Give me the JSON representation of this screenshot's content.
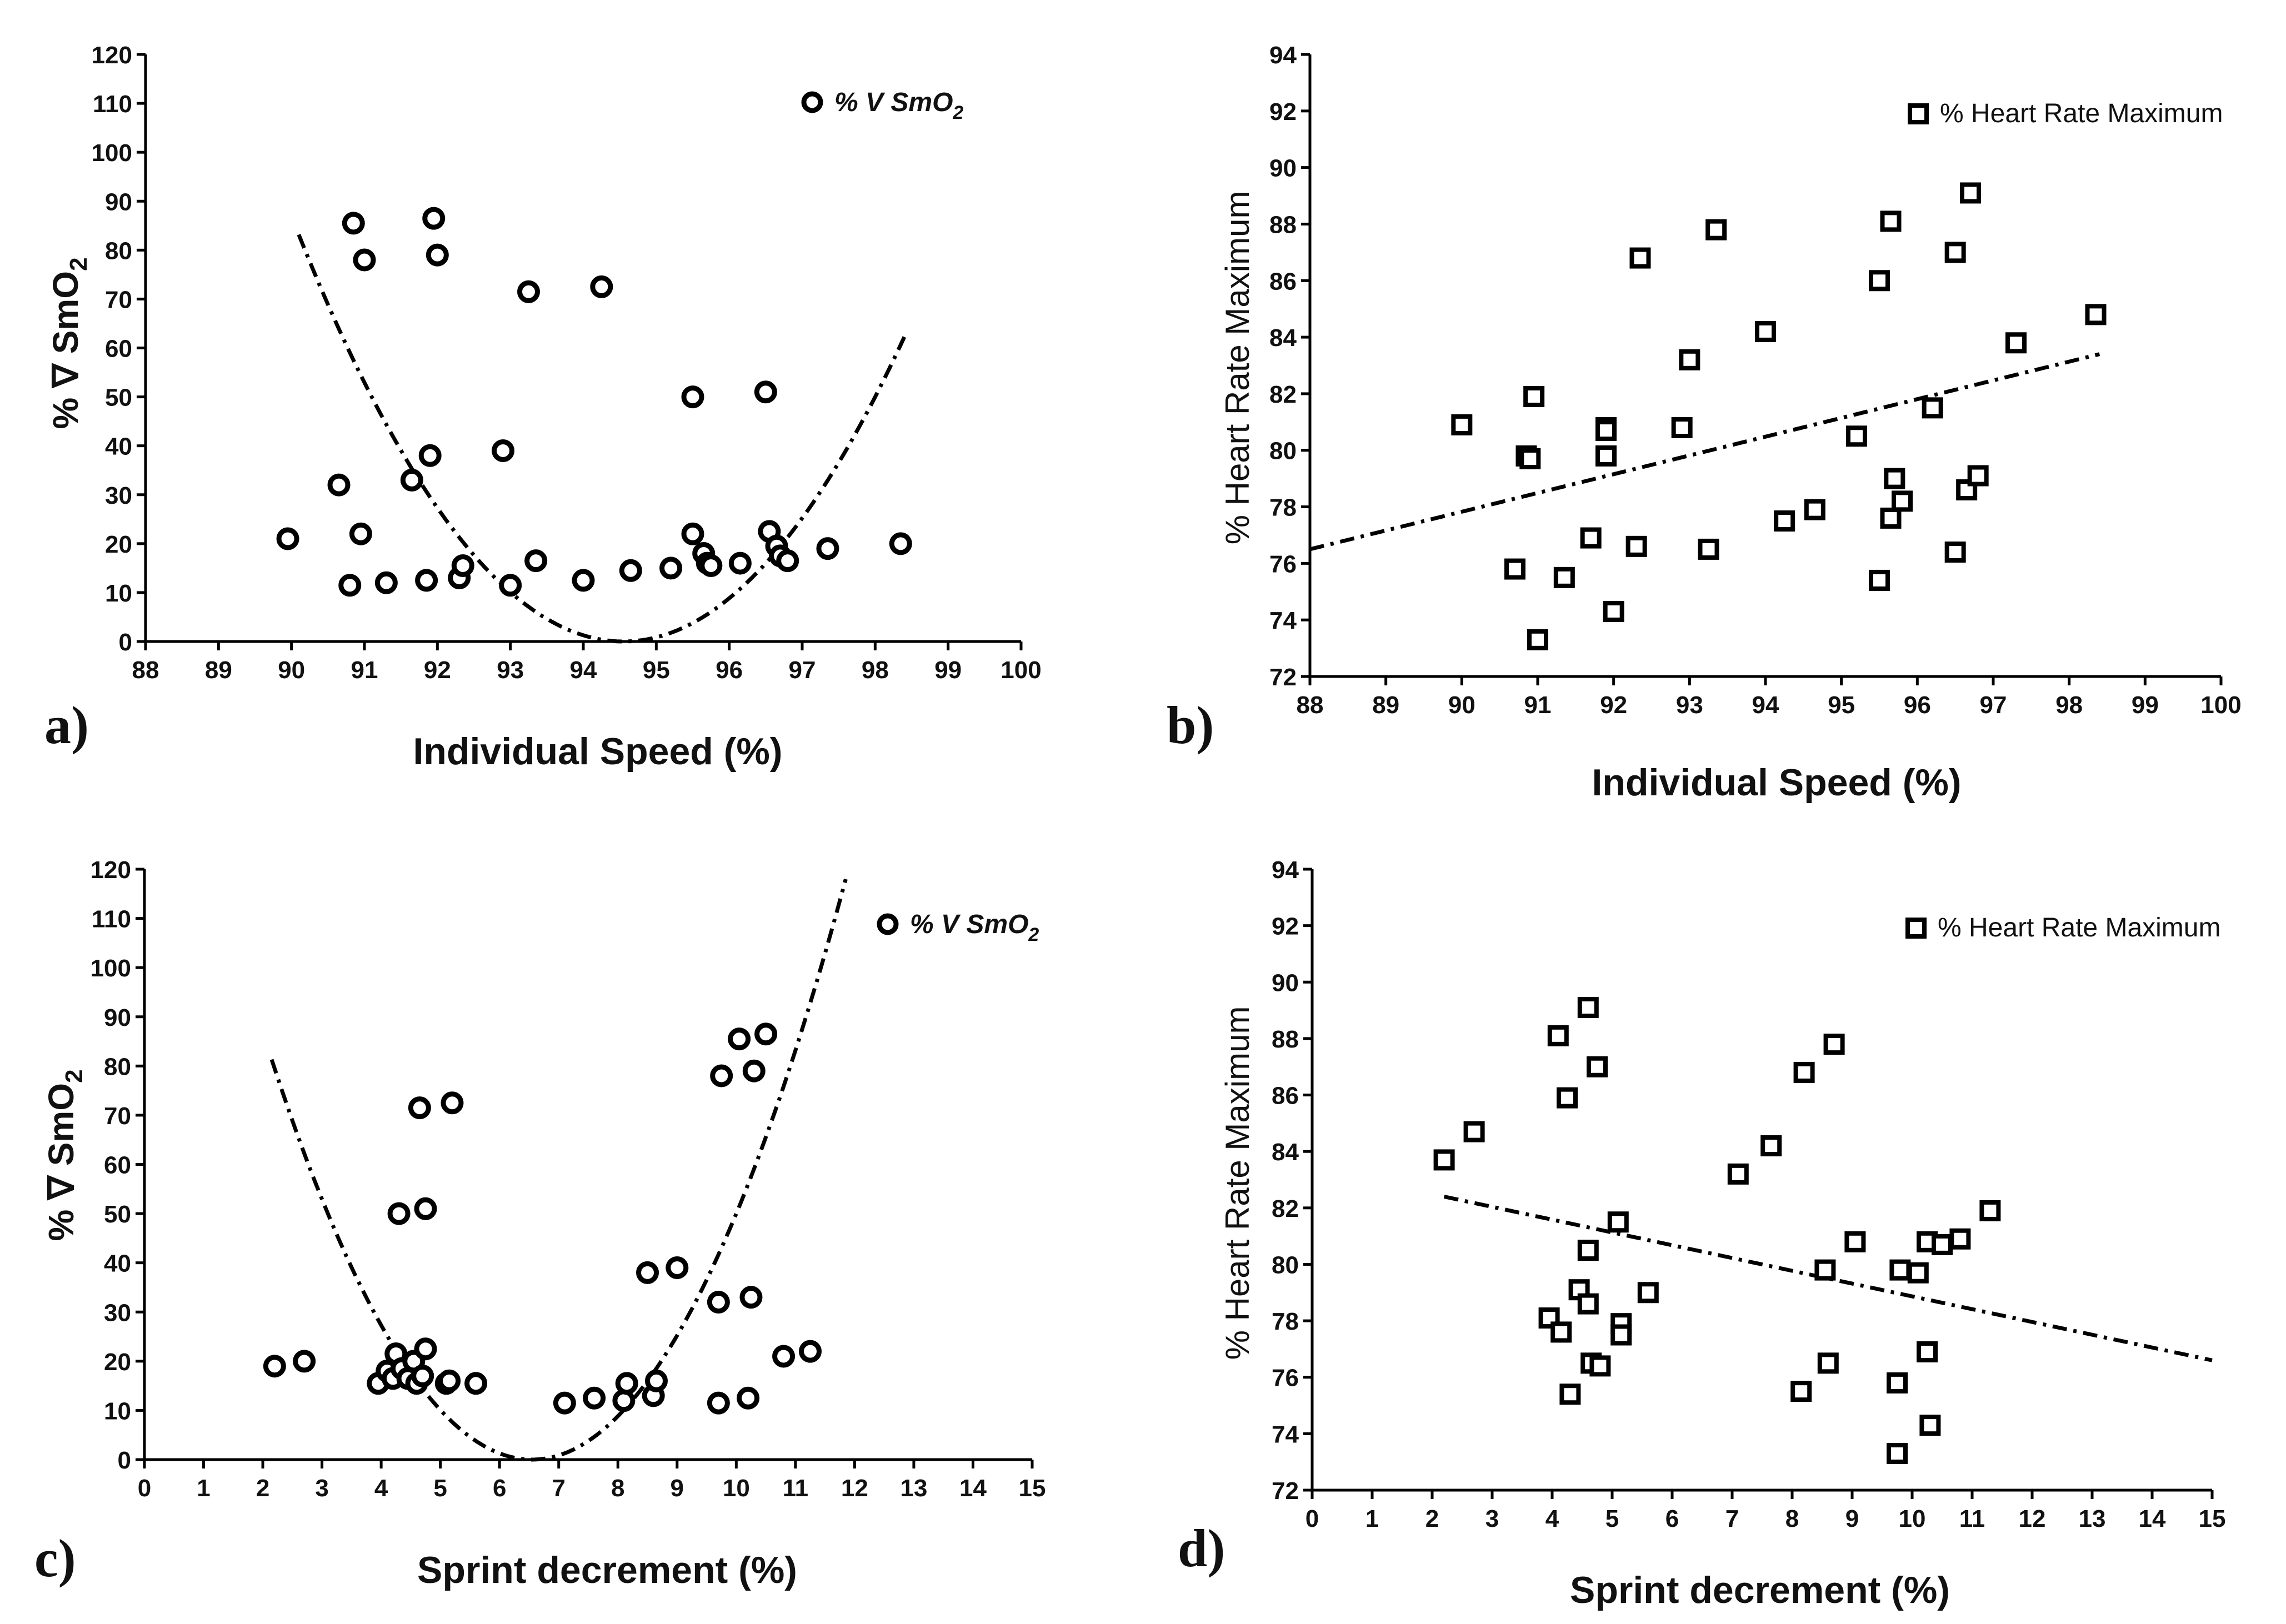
{
  "chart_data": [
    {
      "panel_label": "a)",
      "type": "scatter",
      "xlabel": "Individual Speed (%)",
      "ylabel": "% ∇ SmO",
      "ylabel_sub": "2",
      "xlim": [
        88,
        100
      ],
      "ylim": [
        0,
        120
      ],
      "xticks": [
        "88",
        "89",
        "90",
        "91",
        "92",
        "93",
        "94",
        "95",
        "96",
        "97",
        "98",
        "99",
        "100"
      ],
      "yticks": [
        "0",
        "10",
        "20",
        "30",
        "40",
        "50",
        "60",
        "70",
        "80",
        "90",
        "100",
        "110",
        "120"
      ],
      "legend": {
        "label": "% V SmO",
        "sub": "2",
        "marker": "circle",
        "position": "top-right"
      },
      "trend": {
        "type": "quadratic",
        "equation": "4.2*(x-94.55)^2",
        "x_range": [
          90.1,
          98.4
        ]
      },
      "points": [
        {
          "x": 89.95,
          "y": 21
        },
        {
          "x": 90.65,
          "y": 32
        },
        {
          "x": 90.8,
          "y": 11.5
        },
        {
          "x": 90.85,
          "y": 85.5
        },
        {
          "x": 90.95,
          "y": 22
        },
        {
          "x": 91.0,
          "y": 78
        },
        {
          "x": 91.3,
          "y": 12
        },
        {
          "x": 91.65,
          "y": 33
        },
        {
          "x": 91.85,
          "y": 12.5
        },
        {
          "x": 91.9,
          "y": 38
        },
        {
          "x": 91.95,
          "y": 86.5
        },
        {
          "x": 92.0,
          "y": 79
        },
        {
          "x": 92.3,
          "y": 13
        },
        {
          "x": 92.35,
          "y": 15.5
        },
        {
          "x": 92.9,
          "y": 39
        },
        {
          "x": 93.0,
          "y": 11.5
        },
        {
          "x": 93.25,
          "y": 71.5
        },
        {
          "x": 93.35,
          "y": 16.5
        },
        {
          "x": 94.0,
          "y": 12.5
        },
        {
          "x": 94.25,
          "y": 72.5
        },
        {
          "x": 94.65,
          "y": 14.5
        },
        {
          "x": 95.2,
          "y": 15
        },
        {
          "x": 95.5,
          "y": 22
        },
        {
          "x": 95.5,
          "y": 50
        },
        {
          "x": 95.65,
          "y": 18
        },
        {
          "x": 95.7,
          "y": 16
        },
        {
          "x": 95.75,
          "y": 15.5
        },
        {
          "x": 96.15,
          "y": 16
        },
        {
          "x": 96.5,
          "y": 51
        },
        {
          "x": 96.55,
          "y": 22.5
        },
        {
          "x": 96.65,
          "y": 19.5
        },
        {
          "x": 96.7,
          "y": 17.5
        },
        {
          "x": 96.8,
          "y": 16.5
        },
        {
          "x": 97.35,
          "y": 19
        },
        {
          "x": 98.35,
          "y": 20
        }
      ]
    },
    {
      "panel_label": "b)",
      "type": "scatter",
      "xlabel": "Individual Speed (%)",
      "ylabel": "% Heart Rate Maximum",
      "xlim": [
        88,
        100
      ],
      "ylim": [
        72,
        94
      ],
      "xticks": [
        "88",
        "89",
        "90",
        "91",
        "92",
        "93",
        "94",
        "95",
        "96",
        "97",
        "98",
        "99",
        "100"
      ],
      "yticks": [
        "72",
        "74",
        "76",
        "78",
        "80",
        "82",
        "84",
        "86",
        "88",
        "90",
        "92",
        "94"
      ],
      "legend": {
        "label": "% Heart Rate Maximum",
        "marker": "square",
        "position": "top-right"
      },
      "trend": {
        "type": "linear",
        "x0": 88,
        "y0": 76.5,
        "x1": 98.4,
        "y1": 83.4
      },
      "points": [
        {
          "x": 90.0,
          "y": 80.9
        },
        {
          "x": 90.7,
          "y": 75.8
        },
        {
          "x": 90.85,
          "y": 79.8
        },
        {
          "x": 90.9,
          "y": 79.7
        },
        {
          "x": 90.95,
          "y": 81.9
        },
        {
          "x": 91.0,
          "y": 73.3
        },
        {
          "x": 91.35,
          "y": 75.5
        },
        {
          "x": 91.7,
          "y": 76.9
        },
        {
          "x": 91.9,
          "y": 80.8
        },
        {
          "x": 91.9,
          "y": 80.7
        },
        {
          "x": 91.9,
          "y": 79.8
        },
        {
          "x": 92.0,
          "y": 74.3
        },
        {
          "x": 92.3,
          "y": 76.6
        },
        {
          "x": 92.35,
          "y": 86.8
        },
        {
          "x": 92.9,
          "y": 80.8
        },
        {
          "x": 93.0,
          "y": 83.2
        },
        {
          "x": 93.25,
          "y": 76.5
        },
        {
          "x": 93.35,
          "y": 87.8
        },
        {
          "x": 94.0,
          "y": 84.2
        },
        {
          "x": 94.25,
          "y": 77.5
        },
        {
          "x": 94.65,
          "y": 77.9
        },
        {
          "x": 95.2,
          "y": 80.5
        },
        {
          "x": 95.5,
          "y": 75.4
        },
        {
          "x": 95.5,
          "y": 86.0
        },
        {
          "x": 95.65,
          "y": 77.6
        },
        {
          "x": 95.7,
          "y": 79.0
        },
        {
          "x": 95.65,
          "y": 88.1
        },
        {
          "x": 95.8,
          "y": 78.2
        },
        {
          "x": 96.2,
          "y": 81.5
        },
        {
          "x": 96.5,
          "y": 76.4
        },
        {
          "x": 96.5,
          "y": 87.0
        },
        {
          "x": 96.65,
          "y": 78.6
        },
        {
          "x": 96.7,
          "y": 89.1
        },
        {
          "x": 96.8,
          "y": 79.1
        },
        {
          "x": 97.3,
          "y": 83.8
        },
        {
          "x": 98.35,
          "y": 84.8
        }
      ]
    },
    {
      "panel_label": "c)",
      "type": "scatter",
      "xlabel": "Sprint decrement (%)",
      "ylabel": "% ∇ SmO",
      "ylabel_sub": "2",
      "xlim": [
        0,
        15
      ],
      "ylim": [
        0,
        120
      ],
      "xticks": [
        "0",
        "1",
        "2",
        "3",
        "4",
        "5",
        "6",
        "7",
        "8",
        "9",
        "10",
        "11",
        "12",
        "13",
        "14",
        "15"
      ],
      "yticks": [
        "0",
        "10",
        "20",
        "30",
        "40",
        "50",
        "60",
        "70",
        "80",
        "90",
        "100",
        "110",
        "120"
      ],
      "legend": {
        "label": "% V SmO",
        "sub": "2",
        "marker": "circle",
        "position": "top-right"
      },
      "trend": {
        "type": "quadratic",
        "equation": "4.2*(x-6.55)^2",
        "x_range": [
          2.15,
          11.85
        ]
      },
      "points": [
        {
          "x": 2.2,
          "y": 19
        },
        {
          "x": 2.7,
          "y": 20
        },
        {
          "x": 3.95,
          "y": 15.5
        },
        {
          "x": 4.1,
          "y": 18
        },
        {
          "x": 4.2,
          "y": 16.5
        },
        {
          "x": 4.25,
          "y": 21.5
        },
        {
          "x": 4.3,
          "y": 50
        },
        {
          "x": 4.35,
          "y": 18.5
        },
        {
          "x": 4.45,
          "y": 16.5
        },
        {
          "x": 4.55,
          "y": 20
        },
        {
          "x": 4.6,
          "y": 15.5
        },
        {
          "x": 4.65,
          "y": 71.5
        },
        {
          "x": 4.7,
          "y": 17
        },
        {
          "x": 4.75,
          "y": 51
        },
        {
          "x": 4.75,
          "y": 22.5
        },
        {
          "x": 5.1,
          "y": 15.5
        },
        {
          "x": 5.15,
          "y": 16
        },
        {
          "x": 5.2,
          "y": 72.5
        },
        {
          "x": 5.6,
          "y": 15.5
        },
        {
          "x": 7.1,
          "y": 11.5
        },
        {
          "x": 7.6,
          "y": 12.5
        },
        {
          "x": 8.1,
          "y": 12
        },
        {
          "x": 8.15,
          "y": 15.5
        },
        {
          "x": 8.5,
          "y": 38
        },
        {
          "x": 8.6,
          "y": 13
        },
        {
          "x": 8.65,
          "y": 16
        },
        {
          "x": 9.0,
          "y": 39
        },
        {
          "x": 9.7,
          "y": 11.5
        },
        {
          "x": 9.7,
          "y": 32
        },
        {
          "x": 9.75,
          "y": 78
        },
        {
          "x": 10.05,
          "y": 85.5
        },
        {
          "x": 10.2,
          "y": 12.5
        },
        {
          "x": 10.25,
          "y": 33
        },
        {
          "x": 10.3,
          "y": 79
        },
        {
          "x": 10.5,
          "y": 86.5
        },
        {
          "x": 10.8,
          "y": 21
        },
        {
          "x": 11.25,
          "y": 22
        }
      ]
    },
    {
      "panel_label": "d)",
      "type": "scatter",
      "xlabel": "Sprint decrement (%)",
      "ylabel": "% Heart Rate Maximum",
      "xlim": [
        0,
        15
      ],
      "ylim": [
        72,
        94
      ],
      "xticks": [
        "0",
        "1",
        "2",
        "3",
        "4",
        "5",
        "6",
        "7",
        "8",
        "9",
        "10",
        "11",
        "12",
        "13",
        "14",
        "15"
      ],
      "yticks": [
        "72",
        "74",
        "76",
        "78",
        "80",
        "82",
        "84",
        "86",
        "88",
        "90",
        "92",
        "94"
      ],
      "legend": {
        "label": "% Heart Rate Maximum",
        "marker": "square",
        "position": "top-right"
      },
      "trend": {
        "type": "linear",
        "x0": 2.2,
        "y0": 82.4,
        "x1": 15,
        "y1": 76.6
      },
      "points": [
        {
          "x": 2.2,
          "y": 83.7
        },
        {
          "x": 2.7,
          "y": 84.7
        },
        {
          "x": 3.95,
          "y": 78.1
        },
        {
          "x": 4.1,
          "y": 88.1
        },
        {
          "x": 4.15,
          "y": 77.6
        },
        {
          "x": 4.25,
          "y": 85.9
        },
        {
          "x": 4.3,
          "y": 75.4
        },
        {
          "x": 4.45,
          "y": 79.1
        },
        {
          "x": 4.6,
          "y": 80.5
        },
        {
          "x": 4.6,
          "y": 78.6
        },
        {
          "x": 4.6,
          "y": 89.1
        },
        {
          "x": 4.65,
          "y": 76.5
        },
        {
          "x": 4.75,
          "y": 87.0
        },
        {
          "x": 4.8,
          "y": 76.4
        },
        {
          "x": 5.1,
          "y": 81.5
        },
        {
          "x": 5.15,
          "y": 77.9
        },
        {
          "x": 5.15,
          "y": 77.5
        },
        {
          "x": 5.6,
          "y": 79.0
        },
        {
          "x": 7.1,
          "y": 83.2
        },
        {
          "x": 7.65,
          "y": 84.2
        },
        {
          "x": 8.15,
          "y": 75.5
        },
        {
          "x": 8.2,
          "y": 86.8
        },
        {
          "x": 8.55,
          "y": 79.8
        },
        {
          "x": 8.6,
          "y": 76.5
        },
        {
          "x": 8.7,
          "y": 87.8
        },
        {
          "x": 9.05,
          "y": 80.8
        },
        {
          "x": 9.75,
          "y": 73.3
        },
        {
          "x": 9.75,
          "y": 75.8
        },
        {
          "x": 9.8,
          "y": 79.8
        },
        {
          "x": 10.1,
          "y": 79.7
        },
        {
          "x": 10.25,
          "y": 76.9
        },
        {
          "x": 10.25,
          "y": 80.8
        },
        {
          "x": 10.3,
          "y": 74.3
        },
        {
          "x": 10.5,
          "y": 80.7
        },
        {
          "x": 10.8,
          "y": 80.9
        },
        {
          "x": 11.3,
          "y": 81.9
        }
      ]
    }
  ]
}
